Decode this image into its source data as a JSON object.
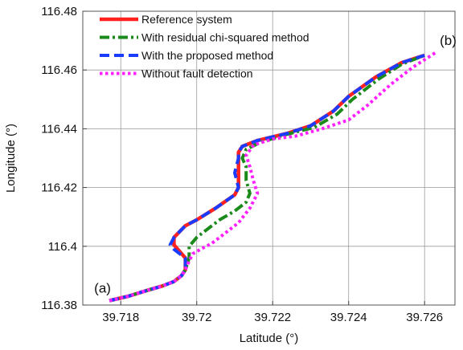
{
  "chart_data": {
    "type": "line",
    "title": "",
    "xlabel": "Latitude (°)",
    "ylabel": "Longitude (°)",
    "xlim": [
      39.717,
      39.7268
    ],
    "ylim": [
      116.38,
      116.48
    ],
    "xticks": [
      39.718,
      39.72,
      39.722,
      39.724,
      39.726
    ],
    "xtick_labels": [
      "39.718",
      "39.72",
      "39.722",
      "39.724",
      "39.726"
    ],
    "yticks": [
      116.38,
      116.4,
      116.42,
      116.44,
      116.46,
      116.48
    ],
    "ytick_labels": [
      "116.38",
      "116.4",
      "116.42",
      "116.44",
      "116.46",
      "116.48"
    ],
    "grid": true,
    "legend_position": "top-left",
    "annotations": [
      {
        "text": "(a)",
        "x": 39.7173,
        "y": 116.3843
      },
      {
        "text": "(b)",
        "x": 39.7264,
        "y": 116.4685
      }
    ],
    "series": [
      {
        "name": "Reference system",
        "color": "#ff2020",
        "style": "solid",
        "x": [
          39.7177,
          39.7182,
          39.7187,
          39.7191,
          39.7194,
          39.7196,
          39.7197,
          39.7197,
          39.7195,
          39.7194,
          39.7194,
          39.7197,
          39.72,
          39.7205,
          39.721,
          39.7211,
          39.7211,
          39.7211,
          39.7211,
          39.7212,
          39.7216,
          39.7224,
          39.723,
          39.7236,
          39.724,
          39.7247,
          39.7254,
          39.726
        ],
        "y": [
          116.3815,
          116.383,
          116.385,
          116.3865,
          116.388,
          116.39,
          116.392,
          116.396,
          116.399,
          116.4005,
          116.403,
          116.407,
          116.409,
          116.413,
          116.4175,
          116.42,
          116.425,
          116.43,
          116.432,
          116.434,
          116.436,
          116.4385,
          116.441,
          116.446,
          116.451,
          116.4575,
          116.4625,
          116.465
        ]
      },
      {
        "name": "With residual chi-squared method",
        "color": "#1a8a1a",
        "style": "dashdot",
        "x": [
          39.7177,
          39.7182,
          39.7187,
          39.7191,
          39.7194,
          39.7196,
          39.7197,
          39.7198,
          39.7198,
          39.72,
          39.7203,
          39.7206,
          39.721,
          39.7213,
          39.7214,
          39.7213,
          39.7213,
          39.7212,
          39.7213,
          39.7217,
          39.7224,
          39.7231,
          39.7237,
          39.7241,
          39.7248,
          39.7254,
          39.726
        ],
        "y": [
          116.3815,
          116.383,
          116.385,
          116.3865,
          116.388,
          116.39,
          116.392,
          116.396,
          116.4,
          116.403,
          116.406,
          116.409,
          116.412,
          116.415,
          116.418,
          116.4225,
          116.427,
          116.43,
          116.433,
          116.4355,
          116.4382,
          116.4405,
          116.445,
          116.45,
          116.457,
          116.462,
          116.465
        ]
      },
      {
        "name": "With the proposed method",
        "color": "#1a3cff",
        "style": "dashed",
        "x": [
          39.7177,
          39.7182,
          39.7187,
          39.7191,
          39.7194,
          39.7196,
          39.7197,
          39.7197,
          39.7194,
          39.7193,
          39.7194,
          39.7197,
          39.72,
          39.7205,
          39.721,
          39.7211,
          39.721,
          39.7211,
          39.7211,
          39.7212,
          39.7216,
          39.7224,
          39.723,
          39.7236,
          39.724,
          39.7247,
          39.7254,
          39.726
        ],
        "y": [
          116.3815,
          116.383,
          116.385,
          116.3865,
          116.388,
          116.39,
          116.392,
          116.396,
          116.399,
          116.4005,
          116.403,
          116.407,
          116.409,
          116.413,
          116.4175,
          116.42,
          116.425,
          116.43,
          116.432,
          116.434,
          116.436,
          116.4385,
          116.441,
          116.446,
          116.451,
          116.4575,
          116.4625,
          116.465
        ]
      },
      {
        "name": "Without fault detection",
        "color": "#ff22ff",
        "style": "dotted",
        "x": [
          39.7177,
          39.7182,
          39.7187,
          39.7191,
          39.7194,
          39.7196,
          39.7197,
          39.7198,
          39.7199,
          39.7201,
          39.7204,
          39.7207,
          39.7211,
          39.7214,
          39.7216,
          39.7215,
          39.7214,
          39.7213,
          39.7215,
          39.722,
          39.7226,
          39.7233,
          39.724,
          39.7245,
          39.7251,
          39.7257,
          39.7263
        ],
        "y": [
          116.3815,
          116.383,
          116.385,
          116.3865,
          116.388,
          116.39,
          116.392,
          116.395,
          116.3975,
          116.399,
          116.401,
          116.404,
          116.408,
          116.413,
          116.418,
          116.422,
          116.427,
          116.431,
          116.4345,
          116.4365,
          116.4375,
          116.44,
          116.443,
          116.448,
          116.455,
          116.461,
          116.466
        ]
      }
    ]
  }
}
